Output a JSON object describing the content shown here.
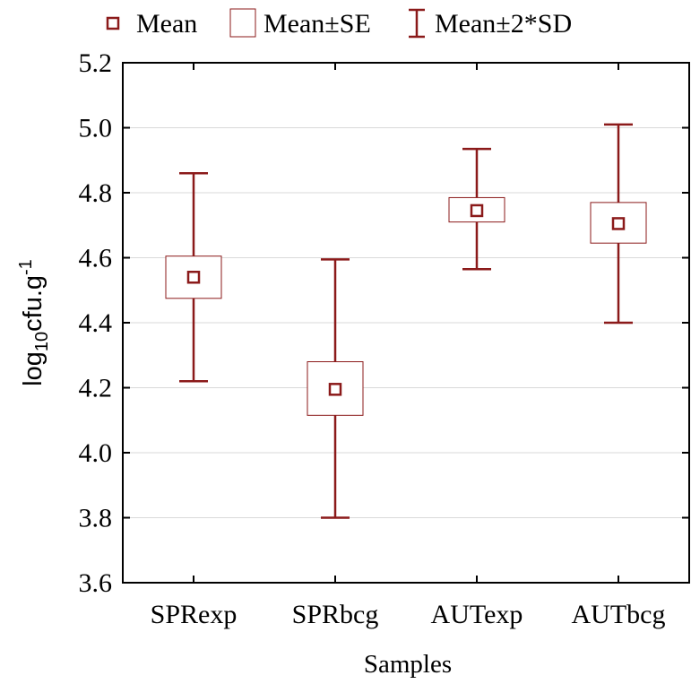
{
  "legend": {
    "mean_label": "Mean",
    "se_label": "Mean±SE",
    "sd_label": "Mean±2*SD"
  },
  "colors": {
    "series": "#8b1a1a",
    "axis": "#000000",
    "grid": "#d9d9d9"
  },
  "chart_data": {
    "type": "box",
    "title": "",
    "xlabel": "Samples",
    "ylabel": "log10cfu.g-1",
    "ylim": [
      3.6,
      5.2
    ],
    "yticks": [
      "3.6",
      "3.8",
      "4.0",
      "4.2",
      "4.4",
      "4.6",
      "4.8",
      "5.0",
      "5.2"
    ],
    "grid": true,
    "legend_position": "top",
    "categories": [
      "SPRexp",
      "SPRbcg",
      "AUTexp",
      "AUTbcg"
    ],
    "mean": [
      4.54,
      4.195,
      4.745,
      4.705
    ],
    "se_low": [
      4.475,
      4.115,
      4.71,
      4.645
    ],
    "se_high": [
      4.605,
      4.28,
      4.785,
      4.77
    ],
    "sd2_low": [
      4.22,
      3.8,
      4.565,
      4.4
    ],
    "sd2_high": [
      4.86,
      4.595,
      4.935,
      5.01
    ]
  }
}
